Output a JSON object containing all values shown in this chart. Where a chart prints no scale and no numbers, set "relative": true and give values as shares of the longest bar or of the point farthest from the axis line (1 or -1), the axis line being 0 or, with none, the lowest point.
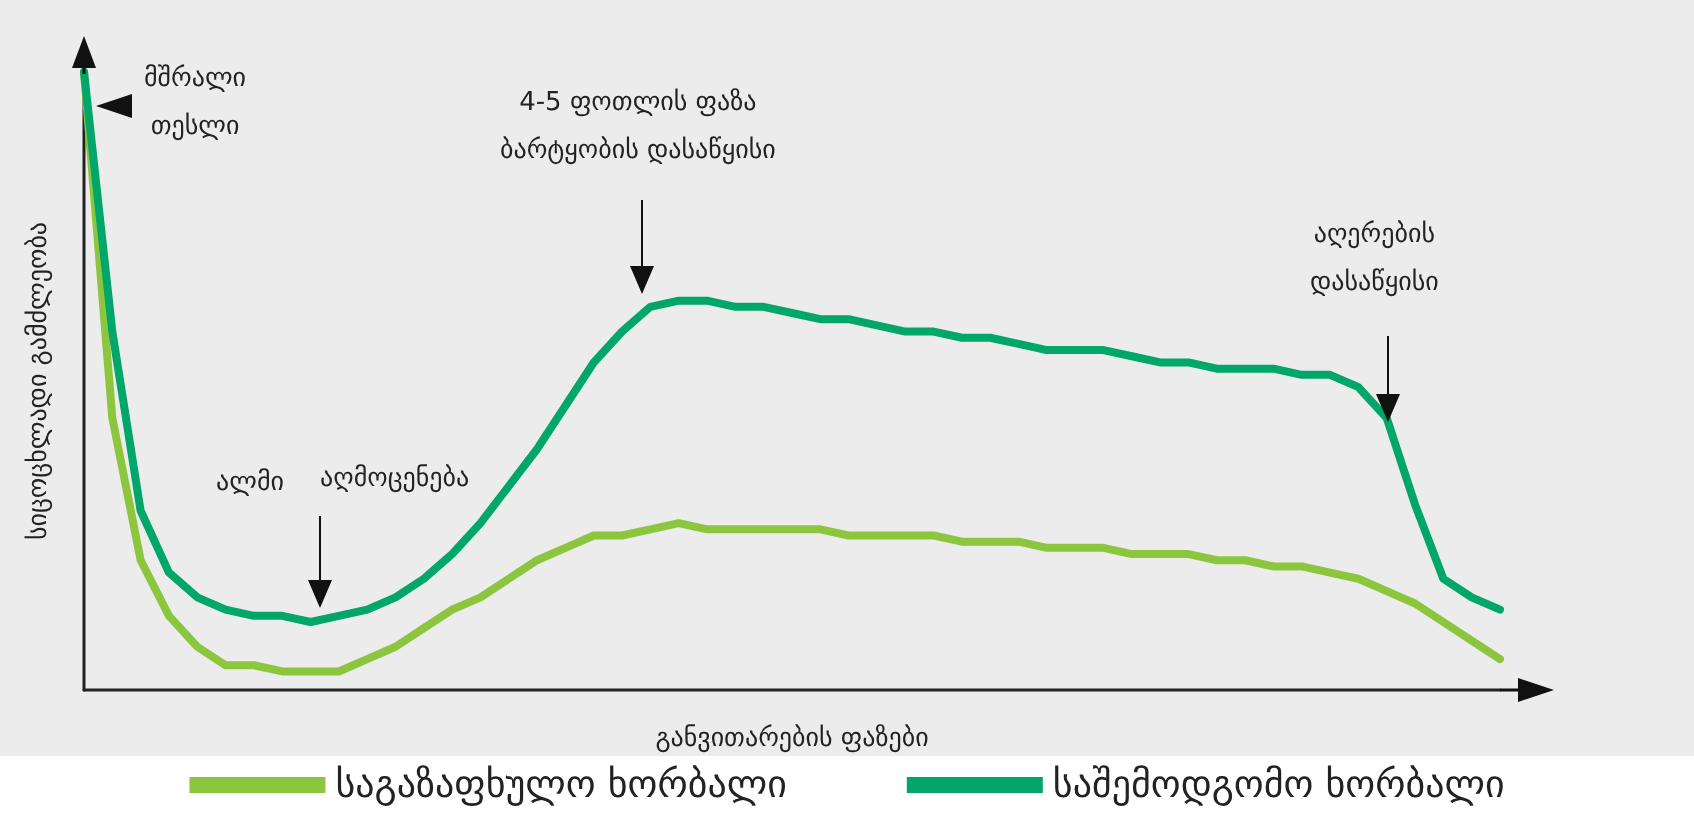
{
  "chart_data": {
    "type": "line",
    "relative": true,
    "xlabel": "განვითარების ფაზები",
    "ylabel": "სიცოცხლადი გამძლეობა",
    "categories": [
      null,
      null,
      null,
      null,
      null,
      null,
      null,
      null,
      null,
      null,
      null,
      null,
      null,
      null,
      null,
      null,
      null,
      null,
      null,
      null,
      null,
      null,
      null,
      null,
      null,
      null,
      null,
      null,
      null,
      null,
      null,
      null,
      null,
      null,
      null,
      null,
      null,
      null,
      null,
      null,
      null,
      null,
      null,
      null,
      null,
      null,
      null,
      null,
      null,
      null,
      null
    ],
    "series": [
      {
        "name": "საგაზაფხულო ხორბალი",
        "color": "#8cc63f",
        "values": [
          1.0,
          0.44,
          0.21,
          0.12,
          0.07,
          0.04,
          0.04,
          0.03,
          0.03,
          0.03,
          0.05,
          0.07,
          0.1,
          0.13,
          0.15,
          0.18,
          0.21,
          0.23,
          0.25,
          0.25,
          0.26,
          0.27,
          0.26,
          0.26,
          0.26,
          0.26,
          0.26,
          0.25,
          0.25,
          0.25,
          0.25,
          0.24,
          0.24,
          0.24,
          0.23,
          0.23,
          0.23,
          0.22,
          0.22,
          0.22,
          0.21,
          0.21,
          0.2,
          0.2,
          0.19,
          0.18,
          0.16,
          0.14,
          0.11,
          0.08,
          0.05
        ]
      },
      {
        "name": "საშემოდგომო ხორბალი",
        "color": "#00a66a",
        "values": [
          1.0,
          0.58,
          0.29,
          0.19,
          0.15,
          0.13,
          0.12,
          0.12,
          0.11,
          0.12,
          0.13,
          0.15,
          0.18,
          0.22,
          0.27,
          0.33,
          0.39,
          0.46,
          0.53,
          0.58,
          0.62,
          0.63,
          0.63,
          0.62,
          0.62,
          0.61,
          0.6,
          0.6,
          0.59,
          0.58,
          0.58,
          0.57,
          0.57,
          0.56,
          0.55,
          0.55,
          0.55,
          0.54,
          0.53,
          0.53,
          0.52,
          0.52,
          0.52,
          0.51,
          0.51,
          0.49,
          0.44,
          0.3,
          0.18,
          0.15,
          0.13
        ]
      }
    ],
    "annotations": [
      "მშრალი\nთესლი",
      "ალმი",
      "აღმოცენება",
      "4-5 ფოთლის ფაზა\nბარტყობის დასაწყისი",
      "აღერების\nდასაწყისი"
    ],
    "legend": "bottom",
    "grid": false,
    "marker": "none",
    "line_style": "solid"
  }
}
